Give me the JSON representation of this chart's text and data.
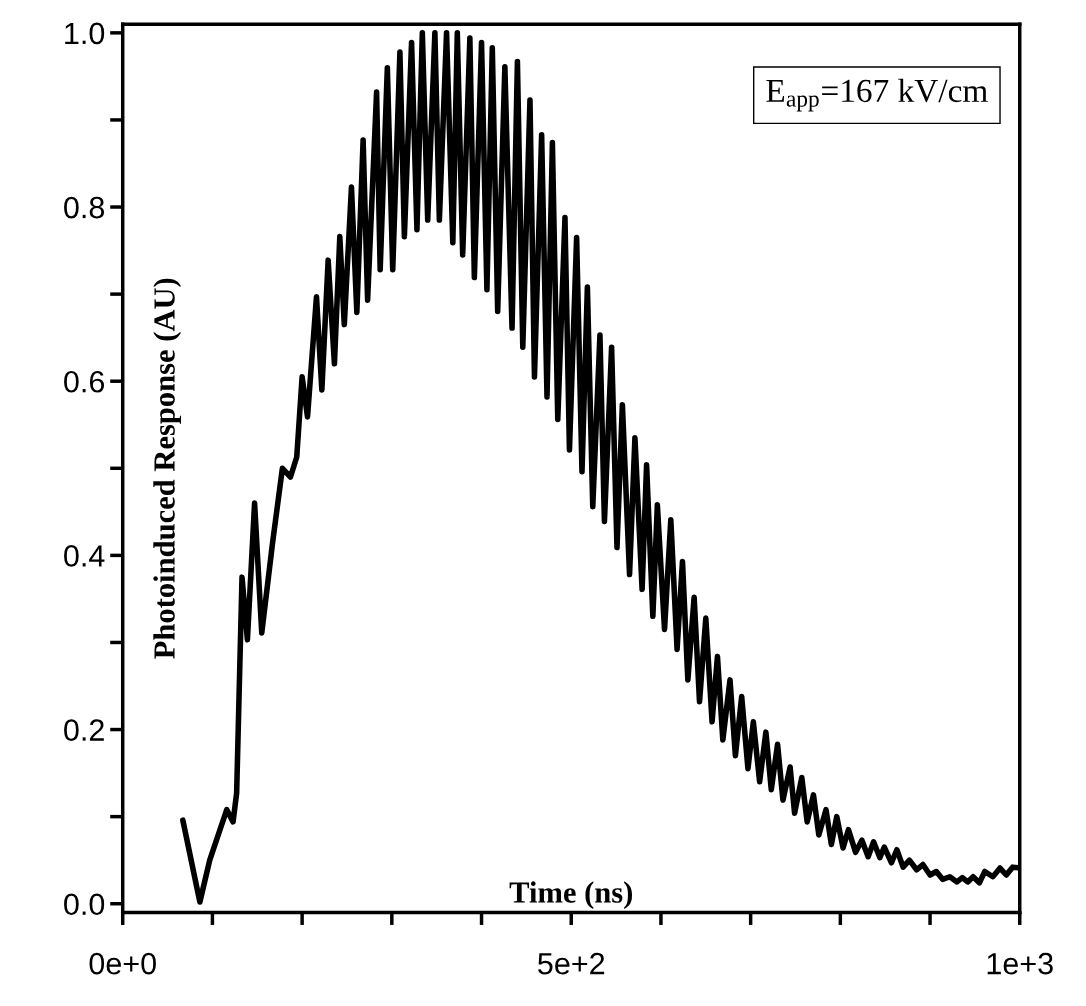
{
  "chart_data": {
    "type": "line",
    "xlabel": "Time (ns)",
    "ylabel": "Photoinduced Response (AU)",
    "annotations": [
      "E$_{app}$=167 kV/cm"
    ],
    "xlim": [
      0,
      1000
    ],
    "ylim": [
      -0.01,
      1.01
    ],
    "xticks": [
      {
        "value": 0,
        "label": "0e+0"
      },
      {
        "value": 100,
        "label": null
      },
      {
        "value": 200,
        "label": null
      },
      {
        "value": 300,
        "label": null
      },
      {
        "value": 400,
        "label": null
      },
      {
        "value": 500,
        "label": "5e+2"
      },
      {
        "value": 600,
        "label": null
      },
      {
        "value": 700,
        "label": null
      },
      {
        "value": 800,
        "label": null
      },
      {
        "value": 900,
        "label": null
      },
      {
        "value": 1000,
        "label": "1e+3"
      }
    ],
    "yticks": [
      {
        "value": 0,
        "label": "0.0"
      },
      {
        "value": 0.1,
        "label": null
      },
      {
        "value": 0.2,
        "label": "0.2"
      },
      {
        "value": 0.3,
        "label": null
      },
      {
        "value": 0.4,
        "label": "0.4"
      },
      {
        "value": 0.5,
        "label": null
      },
      {
        "value": 0.6,
        "label": "0.6"
      },
      {
        "value": 0.7,
        "label": null
      },
      {
        "value": 0.8,
        "label": "0.8"
      },
      {
        "value": 0.9,
        "label": null
      },
      {
        "value": 1.0,
        "label": "1.0"
      }
    ],
    "grid": false,
    "marker": "none",
    "line_style": "solid",
    "series": [
      {
        "color": "#000000",
        "x": [
          67,
          86,
          97,
          116,
          123,
          127,
          133,
          139,
          147,
          155,
          167,
          178,
          187,
          194,
          200,
          206,
          216,
          222,
          229,
          236,
          242,
          247,
          255,
          261,
          268,
          273,
          283,
          287,
          295,
          301,
          309,
          314,
          322,
          328,
          334,
          340,
          348,
          353,
          361,
          368,
          373,
          379,
          387,
          392,
          400,
          406,
          412,
          418,
          426,
          434,
          440,
          446,
          454,
          459,
          467,
          473,
          479,
          485,
          493,
          498,
          506,
          512,
          518,
          524,
          532,
          537,
          545,
          551,
          557,
          565,
          571,
          579,
          584,
          591,
          596,
          604,
          611,
          618,
          624,
          630,
          637,
          643,
          650,
          657,
          663,
          669,
          677,
          683,
          690,
          697,
          703,
          710,
          717,
          723,
          730,
          736,
          744,
          749,
          757,
          763,
          770,
          776,
          784,
          790,
          796,
          803,
          809,
          817,
          824,
          831,
          837,
          844,
          849,
          857,
          863,
          870,
          877,
          885,
          892,
          900,
          907,
          914,
          922,
          930,
          936,
          942,
          948,
          955,
          961,
          970,
          978,
          985,
          992,
          1000
        ],
        "values": [
          0.096,
          0.002,
          0.05,
          0.108,
          0.094,
          0.127,
          0.375,
          0.303,
          0.46,
          0.311,
          0.414,
          0.5,
          0.49,
          0.513,
          0.605,
          0.559,
          0.697,
          0.59,
          0.739,
          0.62,
          0.766,
          0.665,
          0.823,
          0.679,
          0.877,
          0.693,
          0.932,
          0.728,
          0.96,
          0.728,
          0.978,
          0.766,
          0.989,
          0.774,
          1.0,
          0.785,
          1.0,
          0.785,
          1.0,
          0.759,
          1.0,
          0.745,
          0.994,
          0.719,
          0.989,
          0.705,
          0.983,
          0.68,
          0.961,
          0.661,
          0.967,
          0.639,
          0.923,
          0.605,
          0.883,
          0.582,
          0.874,
          0.556,
          0.788,
          0.521,
          0.765,
          0.496,
          0.708,
          0.456,
          0.653,
          0.439,
          0.639,
          0.409,
          0.573,
          0.378,
          0.535,
          0.361,
          0.504,
          0.33,
          0.458,
          0.315,
          0.441,
          0.292,
          0.393,
          0.257,
          0.352,
          0.232,
          0.328,
          0.209,
          0.284,
          0.188,
          0.257,
          0.17,
          0.238,
          0.155,
          0.209,
          0.14,
          0.197,
          0.131,
          0.183,
          0.119,
          0.157,
          0.104,
          0.145,
          0.094,
          0.125,
          0.079,
          0.108,
          0.068,
          0.1,
          0.064,
          0.085,
          0.059,
          0.073,
          0.054,
          0.071,
          0.053,
          0.065,
          0.047,
          0.062,
          0.042,
          0.05,
          0.039,
          0.045,
          0.033,
          0.037,
          0.028,
          0.031,
          0.025,
          0.03,
          0.025,
          0.031,
          0.024,
          0.037,
          0.031,
          0.041,
          0.033,
          0.042,
          0.041
        ]
      }
    ]
  }
}
